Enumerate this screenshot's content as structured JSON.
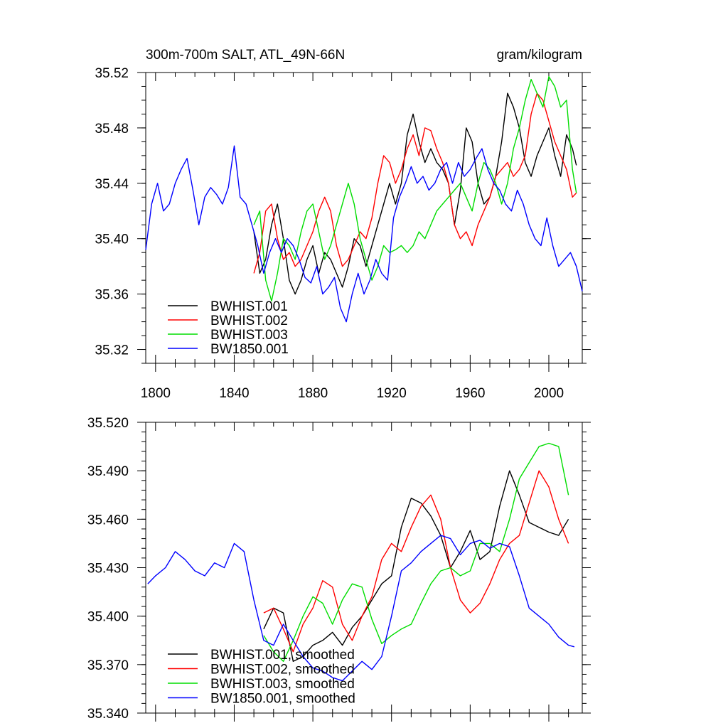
{
  "chart_data": [
    {
      "type": "line",
      "title_left": "300m-700m SALT, ATL_49N-66N",
      "title_right": "gram/kilogram",
      "xlim": [
        1795,
        2017
      ],
      "ylim": [
        35.31,
        35.52
      ],
      "xticks": [
        1800,
        1840,
        1880,
        1920,
        1960,
        2000
      ],
      "yticks": [
        35.32,
        35.36,
        35.4,
        35.44,
        35.48,
        35.52
      ],
      "ytick_labels": [
        "35.32",
        "35.36",
        "35.40",
        "35.44",
        "35.48",
        "35.52"
      ],
      "legend": [
        "BWHIST.001",
        "BWHIST.002",
        "BWHIST.003",
        "BW1850.001"
      ],
      "series": [
        {
          "name": "BWHIST.001",
          "color": "#000000",
          "x": [
            1850,
            1853,
            1856,
            1859,
            1862,
            1865,
            1868,
            1871,
            1874,
            1877,
            1880,
            1883,
            1886,
            1889,
            1892,
            1895,
            1898,
            1901,
            1904,
            1907,
            1910,
            1913,
            1916,
            1919,
            1922,
            1925,
            1928,
            1931,
            1934,
            1937,
            1940,
            1943,
            1946,
            1949,
            1952,
            1955,
            1958,
            1961,
            1964,
            1967,
            1970,
            1973,
            1976,
            1979,
            1982,
            1985,
            1988,
            1991,
            1994,
            1997,
            2000,
            2003,
            2006,
            2009,
            2012,
            2014
          ],
          "y": [
            35.405,
            35.375,
            35.385,
            35.41,
            35.425,
            35.4,
            35.37,
            35.36,
            35.37,
            35.385,
            35.395,
            35.375,
            35.39,
            35.385,
            35.375,
            35.365,
            35.38,
            35.4,
            35.395,
            35.38,
            35.395,
            35.41,
            35.425,
            35.44,
            35.425,
            35.44,
            35.475,
            35.49,
            35.47,
            35.455,
            35.465,
            35.455,
            35.45,
            35.44,
            35.41,
            35.435,
            35.48,
            35.47,
            35.44,
            35.425,
            35.43,
            35.445,
            35.47,
            35.505,
            35.495,
            35.48,
            35.455,
            35.445,
            35.46,
            35.47,
            35.48,
            35.46,
            35.445,
            35.475,
            35.465,
            35.453
          ]
        },
        {
          "name": "BWHIST.002",
          "color": "#ff0000",
          "x": [
            1850,
            1853,
            1856,
            1859,
            1862,
            1865,
            1868,
            1871,
            1874,
            1877,
            1880,
            1883,
            1886,
            1889,
            1892,
            1895,
            1898,
            1901,
            1904,
            1907,
            1910,
            1913,
            1916,
            1919,
            1922,
            1925,
            1928,
            1931,
            1934,
            1937,
            1940,
            1943,
            1946,
            1949,
            1952,
            1955,
            1958,
            1961,
            1964,
            1967,
            1970,
            1973,
            1976,
            1979,
            1982,
            1985,
            1988,
            1991,
            1994,
            1997,
            2000,
            2003,
            2006,
            2009,
            2012,
            2014
          ],
          "y": [
            35.375,
            35.39,
            35.42,
            35.425,
            35.4,
            35.385,
            35.39,
            35.38,
            35.385,
            35.395,
            35.405,
            35.42,
            35.43,
            35.42,
            35.395,
            35.38,
            35.385,
            35.395,
            35.405,
            35.4,
            35.415,
            35.44,
            35.46,
            35.455,
            35.44,
            35.45,
            35.465,
            35.475,
            35.46,
            35.48,
            35.478,
            35.465,
            35.455,
            35.44,
            35.41,
            35.4,
            35.405,
            35.395,
            35.41,
            35.42,
            35.43,
            35.445,
            35.45,
            35.455,
            35.445,
            35.45,
            35.46,
            35.49,
            35.505,
            35.5,
            35.485,
            35.47,
            35.46,
            35.45,
            35.43,
            35.433
          ]
        },
        {
          "name": "BWHIST.003",
          "color": "#00dd00",
          "x": [
            1850,
            1853,
            1856,
            1859,
            1862,
            1865,
            1868,
            1871,
            1874,
            1877,
            1880,
            1883,
            1886,
            1889,
            1892,
            1895,
            1898,
            1901,
            1904,
            1907,
            1910,
            1913,
            1916,
            1919,
            1922,
            1925,
            1928,
            1931,
            1934,
            1937,
            1940,
            1943,
            1946,
            1949,
            1952,
            1955,
            1958,
            1961,
            1964,
            1967,
            1970,
            1973,
            1976,
            1979,
            1982,
            1985,
            1988,
            1991,
            1994,
            1997,
            2000,
            2003,
            2006,
            2009,
            2012,
            2014
          ],
          "y": [
            35.41,
            35.42,
            35.37,
            35.355,
            35.375,
            35.4,
            35.395,
            35.385,
            35.405,
            35.42,
            35.425,
            35.405,
            35.385,
            35.395,
            35.41,
            35.425,
            35.44,
            35.425,
            35.4,
            35.385,
            35.37,
            35.38,
            35.395,
            35.39,
            35.392,
            35.395,
            35.39,
            35.395,
            35.405,
            35.4,
            35.41,
            35.42,
            35.425,
            35.43,
            35.435,
            35.44,
            35.43,
            35.42,
            35.44,
            35.455,
            35.45,
            35.44,
            35.425,
            35.44,
            35.465,
            35.48,
            35.5,
            35.515,
            35.505,
            35.495,
            35.517,
            35.51,
            35.495,
            35.5,
            35.45,
            35.433
          ]
        },
        {
          "name": "BW1850.001",
          "color": "#0000ff",
          "x": [
            1795,
            1798,
            1801,
            1804,
            1807,
            1810,
            1813,
            1816,
            1819,
            1822,
            1825,
            1828,
            1831,
            1834,
            1837,
            1840,
            1843,
            1846,
            1849,
            1852,
            1855,
            1858,
            1861,
            1864,
            1867,
            1870,
            1873,
            1876,
            1879,
            1882,
            1885,
            1888,
            1891,
            1894,
            1897,
            1900,
            1903,
            1906,
            1909,
            1912,
            1915,
            1918,
            1921,
            1924,
            1927,
            1930,
            1933,
            1936,
            1939,
            1942,
            1945,
            1948,
            1951,
            1954,
            1957,
            1960,
            1963,
            1966,
            1969,
            1972,
            1975,
            1978,
            1981,
            1984,
            1987,
            1990,
            1993,
            1996,
            1999,
            2002,
            2005,
            2008,
            2011,
            2014,
            2017
          ],
          "y": [
            35.392,
            35.425,
            35.44,
            35.42,
            35.425,
            35.44,
            35.45,
            35.458,
            35.435,
            35.41,
            35.43,
            35.437,
            35.432,
            35.425,
            35.437,
            35.467,
            35.43,
            35.425,
            35.41,
            35.395,
            35.375,
            35.39,
            35.4,
            35.39,
            35.4,
            35.395,
            35.385,
            35.372,
            35.368,
            35.38,
            35.36,
            35.365,
            35.372,
            35.35,
            35.34,
            35.36,
            35.375,
            35.36,
            35.37,
            35.385,
            35.375,
            35.37,
            35.415,
            35.43,
            35.44,
            35.452,
            35.44,
            35.445,
            35.435,
            35.44,
            35.45,
            35.455,
            35.44,
            35.455,
            35.445,
            35.45,
            35.458,
            35.465,
            35.45,
            35.44,
            35.435,
            35.425,
            35.42,
            35.435,
            35.425,
            35.41,
            35.4,
            35.395,
            35.415,
            35.395,
            35.38,
            35.385,
            35.39,
            35.38,
            35.362
          ]
        }
      ]
    },
    {
      "type": "line",
      "xlim": [
        1795,
        2017
      ],
      "ylim": [
        35.34,
        35.52
      ],
      "yticks": [
        35.34,
        35.37,
        35.4,
        35.43,
        35.46,
        35.49,
        35.52
      ],
      "ytick_labels": [
        "35.340",
        "35.370",
        "35.400",
        "35.430",
        "35.460",
        "35.490",
        "35.520"
      ],
      "legend": [
        "BWHIST.001, smoothed",
        "BWHIST.002, smoothed",
        "BWHIST.003, smoothed",
        "BW1850.001, smoothed"
      ],
      "series": [
        {
          "name": "BWHIST.001, smoothed",
          "color": "#000000",
          "x": [
            1855,
            1860,
            1865,
            1870,
            1875,
            1880,
            1885,
            1890,
            1895,
            1900,
            1905,
            1910,
            1915,
            1920,
            1925,
            1930,
            1935,
            1940,
            1945,
            1950,
            1955,
            1960,
            1965,
            1970,
            1975,
            1980,
            1985,
            1990,
            1995,
            2000,
            2005,
            2010
          ],
          "y": [
            35.392,
            35.405,
            35.402,
            35.372,
            35.375,
            35.382,
            35.385,
            35.39,
            35.382,
            35.393,
            35.4,
            35.41,
            35.42,
            35.425,
            35.455,
            35.473,
            35.47,
            35.462,
            35.45,
            35.43,
            35.44,
            35.453,
            35.435,
            35.44,
            35.468,
            35.49,
            35.475,
            35.458,
            35.455,
            35.452,
            35.45,
            35.46
          ]
        },
        {
          "name": "BWHIST.002, smoothed",
          "color": "#ff0000",
          "x": [
            1855,
            1860,
            1865,
            1870,
            1875,
            1880,
            1885,
            1890,
            1895,
            1900,
            1905,
            1910,
            1915,
            1920,
            1925,
            1930,
            1935,
            1940,
            1945,
            1950,
            1955,
            1960,
            1965,
            1970,
            1975,
            1980,
            1985,
            1990,
            1995,
            2000,
            2005,
            2010
          ],
          "y": [
            35.402,
            35.405,
            35.392,
            35.378,
            35.395,
            35.405,
            35.422,
            35.418,
            35.395,
            35.385,
            35.4,
            35.412,
            35.435,
            35.445,
            35.44,
            35.455,
            35.468,
            35.475,
            35.46,
            35.43,
            35.41,
            35.402,
            35.408,
            35.42,
            35.435,
            35.445,
            35.45,
            35.47,
            35.49,
            35.48,
            35.46,
            35.445
          ]
        },
        {
          "name": "BWHIST.003, smoothed",
          "color": "#00dd00",
          "x": [
            1855,
            1860,
            1865,
            1870,
            1875,
            1880,
            1885,
            1890,
            1895,
            1900,
            1905,
            1910,
            1915,
            1920,
            1925,
            1930,
            1935,
            1940,
            1945,
            1950,
            1955,
            1960,
            1965,
            1970,
            1975,
            1980,
            1985,
            1990,
            1995,
            2000,
            2005,
            2010
          ],
          "y": [
            35.388,
            35.378,
            35.372,
            35.385,
            35.4,
            35.412,
            35.408,
            35.395,
            35.41,
            35.42,
            35.418,
            35.398,
            35.383,
            35.388,
            35.392,
            35.395,
            35.408,
            35.42,
            35.428,
            35.43,
            35.425,
            35.428,
            35.445,
            35.445,
            35.44,
            35.46,
            35.485,
            35.495,
            35.505,
            35.507,
            35.505,
            35.475
          ]
        },
        {
          "name": "BW1850.001, smoothed",
          "color": "#0000ff",
          "x": [
            1796,
            1800,
            1805,
            1810,
            1815,
            1820,
            1825,
            1830,
            1835,
            1840,
            1845,
            1850,
            1855,
            1860,
            1865,
            1870,
            1875,
            1880,
            1885,
            1890,
            1895,
            1900,
            1905,
            1910,
            1915,
            1920,
            1925,
            1930,
            1935,
            1940,
            1945,
            1950,
            1955,
            1960,
            1965,
            1970,
            1975,
            1980,
            1985,
            1990,
            1995,
            2000,
            2005,
            2010,
            2013
          ],
          "y": [
            35.42,
            35.425,
            35.43,
            35.44,
            35.435,
            35.428,
            35.425,
            35.433,
            35.43,
            35.445,
            35.44,
            35.41,
            35.385,
            35.382,
            35.395,
            35.385,
            35.375,
            35.368,
            35.366,
            35.362,
            35.36,
            35.366,
            35.372,
            35.367,
            35.375,
            35.4,
            35.428,
            35.433,
            35.44,
            35.445,
            35.45,
            35.448,
            35.438,
            35.445,
            35.447,
            35.442,
            35.445,
            35.443,
            35.425,
            35.405,
            35.4,
            35.395,
            35.387,
            35.382,
            35.381
          ]
        }
      ]
    }
  ]
}
